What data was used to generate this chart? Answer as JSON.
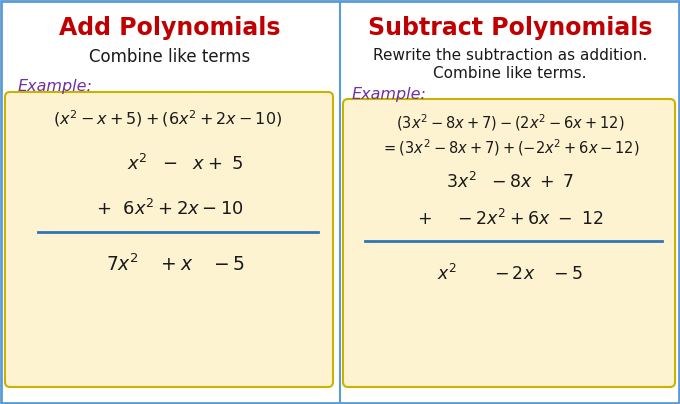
{
  "bg_color": "#ffffff",
  "border_color": "#5b9bd5",
  "divider_color": "#5b9bd5",
  "box_fill_color": "#fdf3d0",
  "box_border_color": "#c8b400",
  "title_color": "#c00000",
  "example_color": "#7030a0",
  "text_color": "#1a1a1a",
  "line_color": "#2e75b6",
  "left_title": "Add Polynomials",
  "right_title": "Subtract Polynomials",
  "left_subtitle": "Combine like terms",
  "right_subtitle1": "Rewrite the subtraction as addition.",
  "right_subtitle2": "Combine like terms.",
  "example_label": "Example:"
}
